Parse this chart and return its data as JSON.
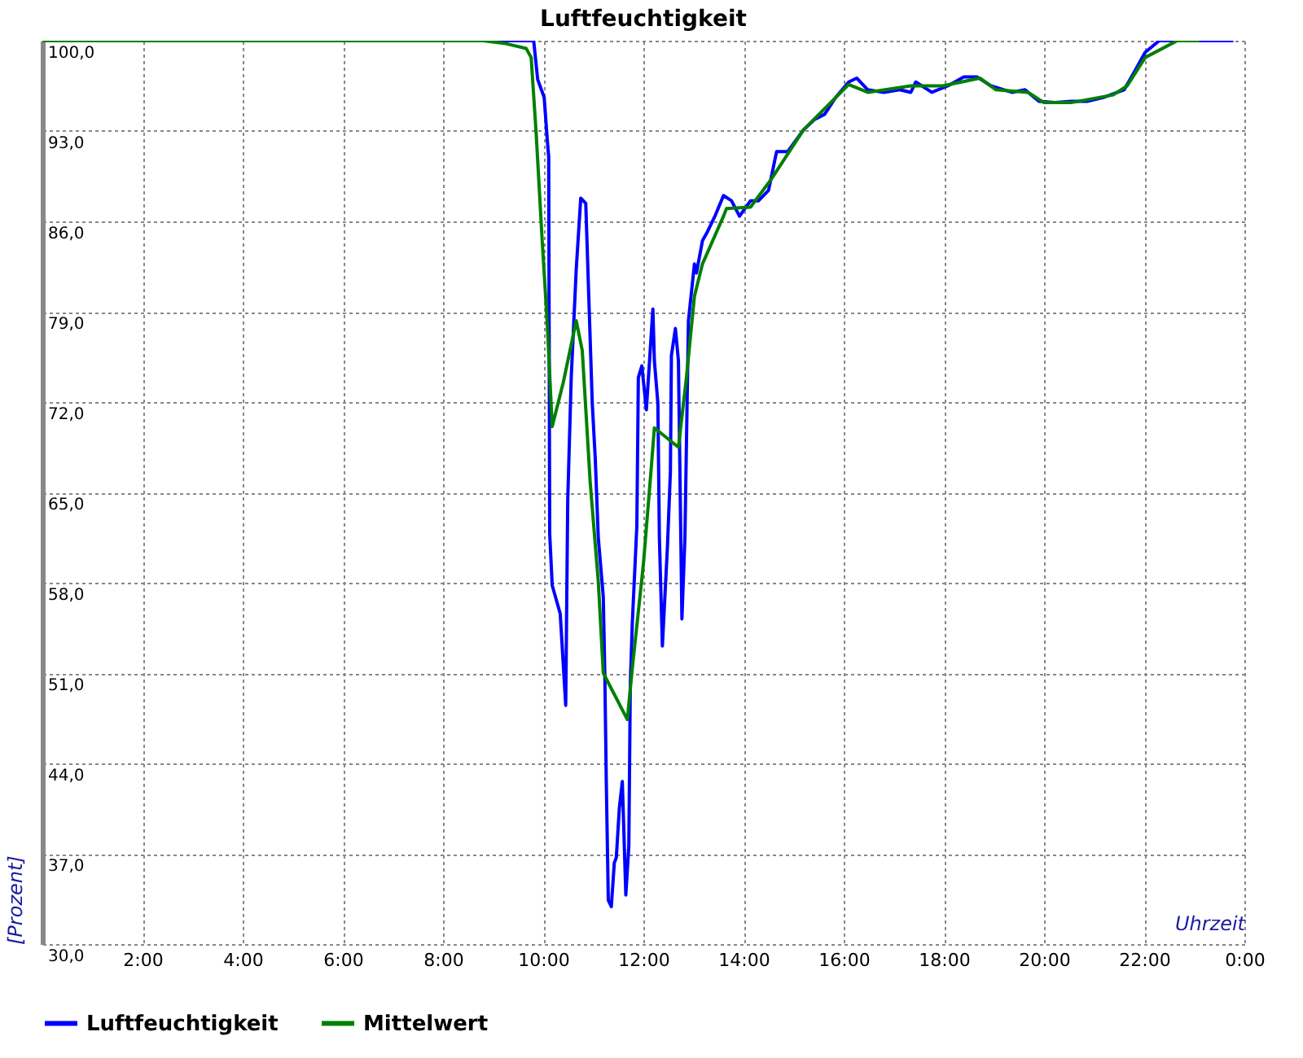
{
  "chart_data": {
    "type": "line",
    "title": "Luftfeuchtigkeit",
    "xlabel": "Uhrzeit",
    "ylabel": "[Prozent]",
    "xlim": [
      0,
      24
    ],
    "ylim": [
      30,
      100
    ],
    "xticks": [
      {
        "value": 2,
        "label": "2:00"
      },
      {
        "value": 4,
        "label": "4:00"
      },
      {
        "value": 6,
        "label": "6:00"
      },
      {
        "value": 8,
        "label": "8:00"
      },
      {
        "value": 10,
        "label": "10:00"
      },
      {
        "value": 12,
        "label": "12:00"
      },
      {
        "value": 14,
        "label": "14:00"
      },
      {
        "value": 16,
        "label": "16:00"
      },
      {
        "value": 18,
        "label": "18:00"
      },
      {
        "value": 20,
        "label": "20:00"
      },
      {
        "value": 22,
        "label": "22:00"
      },
      {
        "value": 24,
        "label": "0:00"
      }
    ],
    "yticks": [
      {
        "value": 30,
        "label": "30,0"
      },
      {
        "value": 37,
        "label": "37,0"
      },
      {
        "value": 44,
        "label": "44,0"
      },
      {
        "value": 51,
        "label": "51,0"
      },
      {
        "value": 58,
        "label": "58,0"
      },
      {
        "value": 65,
        "label": "65,0"
      },
      {
        "value": 72,
        "label": "72,0"
      },
      {
        "value": 79,
        "label": "79,0"
      },
      {
        "value": 86,
        "label": "86,0"
      },
      {
        "value": 93,
        "label": "93,0"
      },
      {
        "value": 100,
        "label": "100,0"
      }
    ],
    "grid": true,
    "legend": "bottom",
    "line_style": "solid",
    "series": [
      {
        "name": "Luftfeuchtigkeit",
        "color": "#0000ff",
        "x": [
          0,
          9.81,
          9.89,
          10.02,
          10.08,
          10.11,
          10.13,
          10.18,
          10.34,
          10.45,
          10.49,
          10.56,
          10.66,
          10.75,
          10.85,
          10.91,
          10.98,
          11.04,
          11.1,
          11.2,
          11.23,
          11.26,
          11.3,
          11.36,
          11.42,
          11.46,
          11.52,
          11.58,
          11.65,
          11.71,
          11.74,
          11.78,
          11.87,
          11.9,
          11.97,
          12.06,
          12.19,
          12.22,
          12.29,
          12.32,
          12.38,
          12.48,
          12.54,
          12.56,
          12.64,
          12.7,
          12.77,
          12.83,
          12.9,
          13.02,
          13.06,
          13.18,
          13.28,
          13.44,
          13.6,
          13.76,
          13.92,
          14.14,
          14.3,
          14.5,
          14.66,
          14.88,
          15.2,
          15.42,
          15.62,
          15.84,
          16.1,
          16.26,
          16.48,
          16.8,
          17.12,
          17.34,
          17.44,
          17.76,
          18.08,
          18.4,
          18.66,
          18.94,
          19.36,
          19.62,
          19.9,
          20.22,
          20.54,
          20.86,
          21.18,
          21.6,
          21.82,
          22.02,
          22.3,
          23.78
        ],
        "values": [
          100,
          100,
          97,
          95.6,
          92.4,
          91,
          61.8,
          57.8,
          55.6,
          48.5,
          64.4,
          73.9,
          82.3,
          87.8,
          87.4,
          80.2,
          71.9,
          67.6,
          61.5,
          56.9,
          51,
          42.6,
          33.4,
          32.9,
          36.3,
          36.7,
          40.5,
          42.6,
          33.8,
          37.6,
          50.2,
          54.9,
          62.4,
          73.9,
          74.8,
          71.4,
          79.2,
          75.2,
          71.9,
          61.5,
          53.1,
          60.7,
          66.6,
          75.6,
          77.7,
          75.2,
          55.2,
          61.5,
          78.3,
          82.7,
          82,
          84.5,
          85.2,
          86.5,
          88,
          87.6,
          86.4,
          87.6,
          87.6,
          88.4,
          91.4,
          91.4,
          93.1,
          93.9,
          94.3,
          95.6,
          96.8,
          97.1,
          96.2,
          96,
          96.2,
          96,
          96.8,
          96,
          96.5,
          97.2,
          97.2,
          96.5,
          96,
          96.2,
          95.3,
          95.2,
          95.3,
          95.3,
          95.6,
          96.2,
          97.7,
          99.1,
          100,
          100
        ]
      },
      {
        "name": "Mittelwert",
        "color": "#008000",
        "x": [
          0,
          8.8,
          9.22,
          9.66,
          9.76,
          9.86,
          9.98,
          10.08,
          10.18,
          10.4,
          10.66,
          10.78,
          10.94,
          11.1,
          11.2,
          11.68,
          11.78,
          12,
          12.16,
          12.22,
          12.7,
          12.86,
          13.02,
          13.18,
          13.6,
          13.66,
          14.14,
          14.56,
          15.2,
          16.1,
          16.48,
          17.34,
          17.98,
          18.72,
          19.04,
          19.68,
          20,
          20.54,
          21.38,
          21.66,
          22.02,
          22.66,
          23.1
        ],
        "values": [
          100,
          100,
          99.8,
          99.4,
          98.7,
          92.8,
          84.5,
          78.2,
          70.1,
          73.5,
          78.3,
          76,
          65.7,
          58.1,
          51,
          47.4,
          51.4,
          59.4,
          67,
          70,
          68.5,
          73.9,
          80.2,
          82.7,
          86.4,
          87,
          87.1,
          89.3,
          93.1,
          96.6,
          96,
          96.5,
          96.5,
          97.1,
          96.2,
          96,
          95.2,
          95.2,
          95.8,
          96.5,
          98.7,
          100,
          100
        ]
      }
    ]
  }
}
